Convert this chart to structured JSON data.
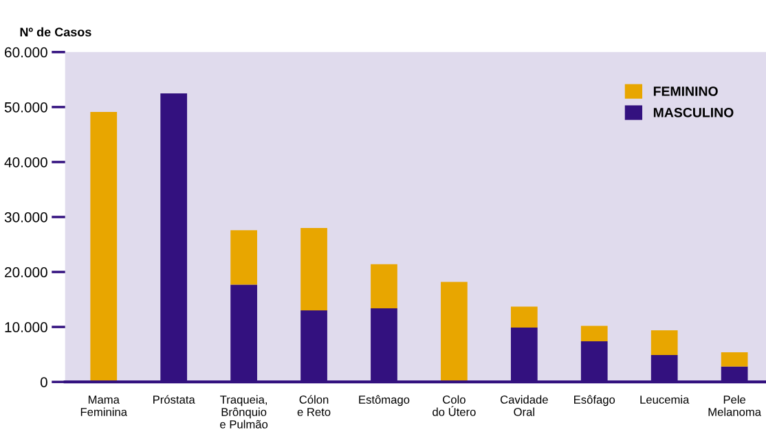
{
  "chart_data": {
    "type": "bar",
    "ylabel": "Nº de Casos",
    "stacked": true,
    "categories": [
      "Mama\nFeminina",
      "Próstata",
      "Traqueia,\nBrônquio\ne Pulmão",
      "Cólon\ne Reto",
      "Estômago",
      "Colo\ndo Útero",
      "Cavidade\nOral",
      "Esôfago",
      "Leucemia",
      "Pele\nMelanoma"
    ],
    "series": [
      {
        "name": "MASCULINO",
        "color": "#33117f",
        "values": [
          0,
          52500,
          17700,
          13000,
          13400,
          0,
          9900,
          7400,
          4900,
          2800
        ]
      },
      {
        "name": "FEMININO",
        "color": "#e8a600",
        "values": [
          49100,
          0,
          9900,
          15000,
          8000,
          18200,
          3800,
          2800,
          4500,
          2600
        ]
      }
    ],
    "ylim": [
      0,
      60000
    ],
    "yticks": [
      0,
      {
        "value": 10000,
        "label": "10.000"
      },
      {
        "value": 20000,
        "label": "20.000"
      },
      {
        "value": 30000,
        "label": "30.000"
      },
      {
        "value": 40000,
        "label": "40.000"
      },
      {
        "value": 50000,
        "label": "50.000"
      },
      {
        "value": 60000,
        "label": "60.000"
      }
    ],
    "grid": false,
    "legend": "top right"
  }
}
